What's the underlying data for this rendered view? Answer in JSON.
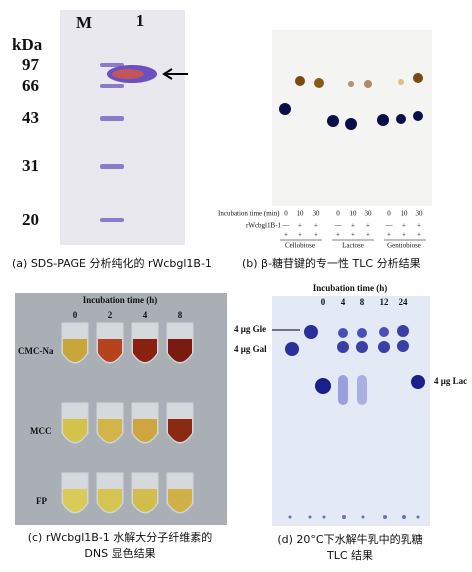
{
  "panel_a": {
    "lane_labels": [
      "M",
      "1"
    ],
    "unit": "kDa",
    "markers": [
      "97",
      "66",
      "43",
      "31",
      "20"
    ],
    "caption": "(a) SDS-PAGE 分析纯化的 rWcbgl1B-1"
  },
  "panel_b": {
    "incubation_label": "Incubation time (min)",
    "times": [
      "0",
      "10",
      "30",
      "0",
      "10",
      "30",
      "0",
      "10",
      "30"
    ],
    "enzyme_label": "rWcbgl1B-1",
    "enzyme": [
      "—",
      "+",
      "+",
      "—",
      "+",
      "+",
      "—",
      "+",
      "+"
    ],
    "substrate": [
      "+",
      "+",
      "+",
      "+",
      "+",
      "+",
      "+",
      "+",
      "+"
    ],
    "sugars": [
      "Cellobiose",
      "Lactose",
      "Gentiobiose"
    ],
    "caption": "(b) β-糖苷键的专一性 TLC 分析结果"
  },
  "panel_c": {
    "title": "Incubation time (h)",
    "times": [
      "0",
      "2",
      "4",
      "8"
    ],
    "rows": [
      "CMC-Na",
      "MCC",
      "FP"
    ],
    "caption": [
      "(c) rWcbgl1B-1 水解大分子纤维素的",
      "DNS 显色结果"
    ]
  },
  "panel_d": {
    "title": "Incubation time (h)",
    "times": [
      "0",
      "4",
      "8",
      "12",
      "24"
    ],
    "standards": [
      "4 μg Gle",
      "4 μg Gal",
      "4 μg Lac"
    ],
    "caption": [
      "(d) 20°C下水解牛乳中的乳糖",
      "TLC 结果"
    ]
  }
}
